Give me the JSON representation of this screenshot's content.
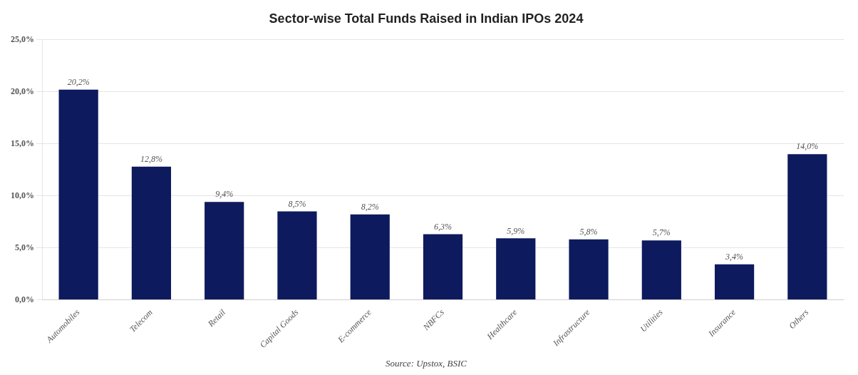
{
  "chart_data": {
    "type": "bar",
    "title": "Sector-wise Total Funds Raised in Indian IPOs 2024",
    "categories": [
      "Automobiles",
      "Telecom",
      "Retail",
      "Capital Goods",
      "E-commerce",
      "NBFCs",
      "Healthcare",
      "Infrastructure",
      "Utilities",
      "Insurance",
      "Others"
    ],
    "values": [
      20.2,
      12.8,
      9.4,
      8.5,
      8.2,
      6.3,
      5.9,
      5.8,
      5.7,
      3.4,
      14.0
    ],
    "value_labels": [
      "20,2%",
      "12,8%",
      "9,4%",
      "8,5%",
      "8,2%",
      "6,3%",
      "5,9%",
      "5,8%",
      "5,7%",
      "3,4%",
      "14,0%"
    ],
    "color": "#0d1a5e",
    "ylim": [
      0,
      25
    ],
    "yticks": [
      {
        "value": 0,
        "label": "0,0%"
      },
      {
        "value": 5,
        "label": "5,0%"
      },
      {
        "value": 10,
        "label": "10,0%"
      },
      {
        "value": 15,
        "label": "15,0%"
      },
      {
        "value": 20,
        "label": "20,0%"
      },
      {
        "value": 25,
        "label": "25,0%"
      }
    ],
    "grid": true,
    "data_labels": true,
    "annotations": [
      "Source: Upstox, BSIC"
    ]
  }
}
